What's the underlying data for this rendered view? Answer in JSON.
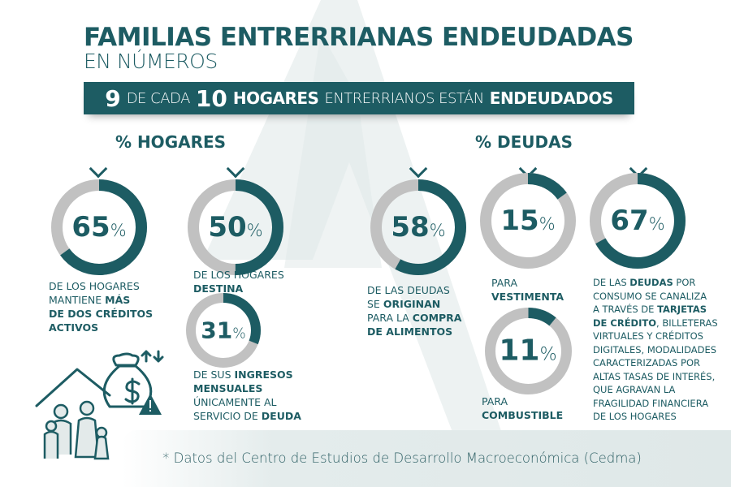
{
  "colors": {
    "accent": "#1d5c63",
    "ring_gray": "#c1c1c1",
    "background": "#ffffff"
  },
  "header": {
    "title": "FAMILIAS ENTRERRIANAS ENDEUDADAS",
    "subtitle": "EN NÚMEROS"
  },
  "banner": {
    "n1": "9",
    "t1": "DE CADA",
    "n2": "10",
    "t2": "HOGARES",
    "t3": "ENTRERRIANOS ESTÁN",
    "t4": "ENDEUDADOS"
  },
  "sections": {
    "hogares": "% HOGARES",
    "deudas": "% DEUDAS"
  },
  "stats": [
    {
      "value": 65,
      "label": "65",
      "unit": "%",
      "text": [
        [
          {
            "t": "DE LOS HOGARES",
            "b": false
          }
        ],
        [
          {
            "t": "MANTIENE ",
            "b": false
          },
          {
            "t": "MÁS",
            "b": true
          }
        ],
        [
          {
            "t": "DE DOS CRÉDITOS",
            "b": true
          }
        ],
        [
          {
            "t": "ACTIVOS",
            "b": true
          }
        ]
      ]
    },
    {
      "value": 50,
      "label": "50",
      "unit": "%",
      "text": [
        [
          {
            "t": "DE LOS HOGARES",
            "b": false
          }
        ],
        [
          {
            "t": "DESTINA",
            "b": true
          }
        ]
      ]
    },
    {
      "value": 31,
      "label": "31",
      "unit": "%",
      "text": [
        [
          {
            "t": "DE SUS ",
            "b": false
          },
          {
            "t": "INGRESOS",
            "b": true
          }
        ],
        [
          {
            "t": "MENSUALES",
            "b": true
          }
        ],
        [
          {
            "t": "ÚNICAMENTE AL",
            "b": false
          }
        ],
        [
          {
            "t": "SERVICIO DE ",
            "b": false
          },
          {
            "t": "DEUDA",
            "b": true
          }
        ]
      ]
    },
    {
      "value": 58,
      "label": "58",
      "unit": "%",
      "text": [
        [
          {
            "t": "DE LAS DEUDAS",
            "b": false
          }
        ],
        [
          {
            "t": "SE ",
            "b": false
          },
          {
            "t": "ORIGINAN",
            "b": true
          }
        ],
        [
          {
            "t": "PARA LA ",
            "b": false
          },
          {
            "t": "COMPRA",
            "b": true
          }
        ],
        [
          {
            "t": "DE ALIMENTOS",
            "b": true
          }
        ]
      ]
    },
    {
      "value": 15,
      "label": "15",
      "unit": "%",
      "text": [
        [
          {
            "t": "PARA",
            "b": false
          }
        ],
        [
          {
            "t": "VESTIMENTA",
            "b": true
          }
        ]
      ]
    },
    {
      "value": 11,
      "label": "11",
      "unit": "%",
      "text": [
        [
          {
            "t": "PARA",
            "b": false
          }
        ],
        [
          {
            "t": "COMBUSTIBLE",
            "b": true
          }
        ]
      ]
    },
    {
      "value": 67,
      "label": "67",
      "unit": "%",
      "text": [
        [
          {
            "t": "DE LAS ",
            "b": false
          },
          {
            "t": "DEUDAS",
            "b": true
          },
          {
            "t": " POR",
            "b": false
          }
        ],
        [
          {
            "t": "CONSUMO SE CANALIZA",
            "b": false
          }
        ],
        [
          {
            "t": "A TRAVÉS DE ",
            "b": false
          },
          {
            "t": "TARJETAS",
            "b": true
          }
        ],
        [
          {
            "t": "DE CRÉDITO",
            "b": true
          },
          {
            "t": ", BILLETERAS",
            "b": false
          }
        ],
        [
          {
            "t": "VIRTUALES Y CRÉDITOS",
            "b": false
          }
        ],
        [
          {
            "t": "DIGITALES, MODALIDADES",
            "b": false
          }
        ],
        [
          {
            "t": "CARACTERIZADAS POR",
            "b": false
          }
        ],
        [
          {
            "t": "ALTAS TASAS DE INTERÉS,",
            "b": false
          }
        ],
        [
          {
            "t": "QUE AGRAVAN LA",
            "b": false
          }
        ],
        [
          {
            "t": "FRAGILIDAD FINANCIERA",
            "b": false
          }
        ],
        [
          {
            "t": "DE LOS HOGARES",
            "b": false
          }
        ]
      ]
    }
  ],
  "footer": {
    "source": "* Datos del Centro de Estudios de Desarrollo Macroeconómica (Cedma)"
  }
}
